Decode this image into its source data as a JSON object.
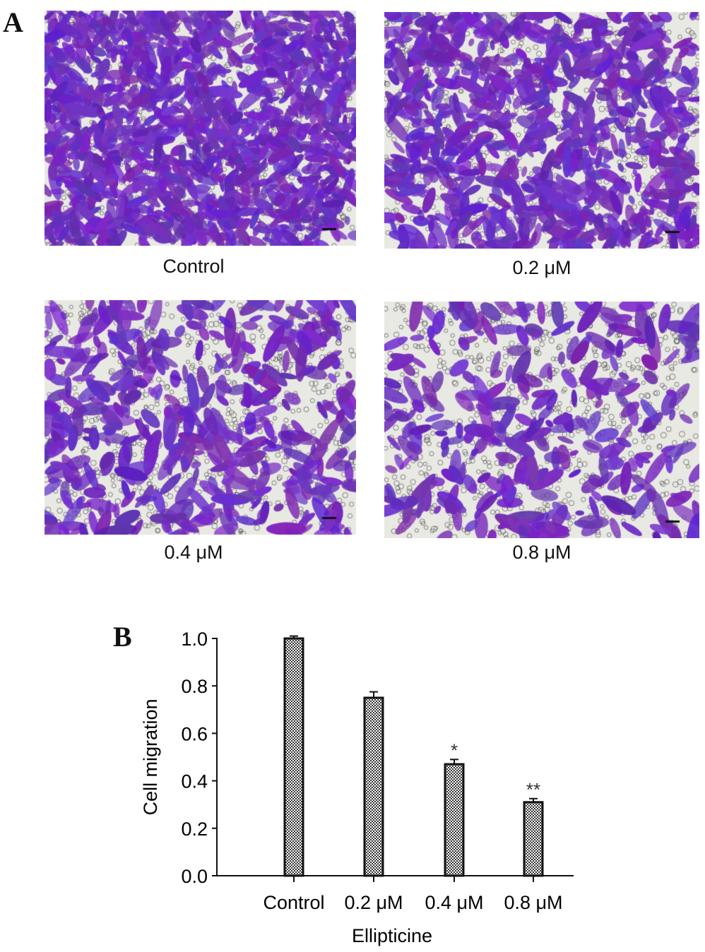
{
  "panels": {
    "a_letter": "A",
    "b_letter": "B",
    "micrographs": [
      {
        "label": "Control",
        "density": 1.0
      },
      {
        "label": "0.2 μM",
        "density": 0.75
      },
      {
        "label": "0.4 μM",
        "density": 0.47
      },
      {
        "label": "0.8 μM",
        "density": 0.31
      }
    ],
    "stain_color": "#6a2bc4"
  },
  "chart_data": {
    "type": "bar",
    "title": "",
    "xlabel": "Ellipticine",
    "ylabel": "Cell migration",
    "categories": [
      "Control",
      "0.2 μM",
      "0.4 μM",
      "0.8 μM"
    ],
    "values": [
      1.0,
      0.75,
      0.47,
      0.31
    ],
    "error": [
      0.01,
      0.025,
      0.02,
      0.015
    ],
    "significance": [
      "",
      "",
      "*",
      "**"
    ],
    "ylim": [
      0.0,
      1.0
    ],
    "yticks": [
      "0.0",
      "0.2",
      "0.4",
      "0.6",
      "0.8",
      "1.0"
    ],
    "grid": false,
    "bar_fill": "crosshatch"
  }
}
